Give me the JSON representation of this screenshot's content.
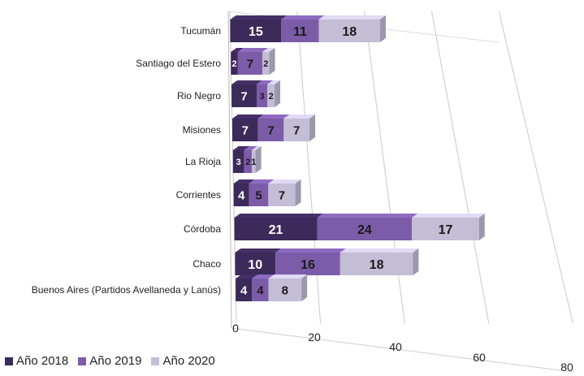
{
  "chart_data": {
    "type": "bar",
    "orientation": "horizontal",
    "stacked": true,
    "three_d": true,
    "categories": [
      "Tucumán",
      "Santiago del Estero",
      "Rio Negro",
      "Misiones",
      "La Rioja",
      "Corrientes",
      "Córdoba",
      "Chaco",
      "Buenos Aires (Partidos Avellaneda y Lanús)"
    ],
    "series": [
      {
        "name": "Año 2018",
        "color": "#3b2a5a",
        "values": [
          15,
          2,
          7,
          7,
          3,
          4,
          21,
          10,
          4
        ]
      },
      {
        "name": "Año 2019",
        "color": "#7c5ca8",
        "values": [
          11,
          7,
          3,
          7,
          2,
          5,
          24,
          16,
          4
        ]
      },
      {
        "name": "Año 2020",
        "color": "#c4bdd6",
        "values": [
          18,
          2,
          2,
          7,
          1,
          7,
          17,
          18,
          8
        ]
      }
    ],
    "x_ticks": [
      "0",
      "20",
      "40",
      "60",
      "80"
    ],
    "xlim": [
      0,
      80
    ],
    "grid": true,
    "legend_position": "bottom-left"
  }
}
